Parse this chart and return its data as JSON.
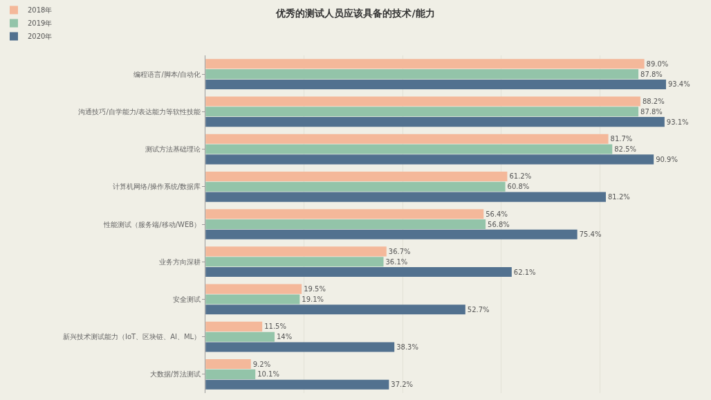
{
  "chart_data": {
    "type": "bar",
    "orientation": "horizontal",
    "title": "优秀的测试人员应该具备的技术/能力",
    "categories": [
      "编程语言/脚本/自动化",
      "沟通技巧/自学能力/表达能力等软性技能",
      "测试方法基础理论",
      "计算机网络/操作系统/数据库",
      "性能测试（服务端/移动/WEB）",
      "业务方向深耕",
      "安全测试",
      "新兴技术测试能力（IoT、区块链、AI、ML）",
      "大数据/算法测试"
    ],
    "series": [
      {
        "name": "2018年",
        "color": "#f4b89a",
        "values": [
          89.0,
          88.2,
          81.7,
          61.2,
          56.4,
          36.7,
          19.5,
          11.5,
          9.2
        ],
        "value_labels": [
          "89.0%",
          "88.2%",
          "81.7%",
          "61.2%",
          "56.4%",
          "36.7%",
          "19.5%",
          "11.5%",
          "9.2%"
        ]
      },
      {
        "name": "2019年",
        "color": "#93c4a9",
        "values": [
          87.8,
          87.8,
          82.5,
          60.8,
          56.8,
          36.1,
          19.1,
          14,
          10.1
        ],
        "value_labels": [
          "87.8%",
          "87.8%",
          "82.5%",
          "60.8%",
          "56.8%",
          "36.1%",
          "19.1%",
          "14%",
          "10.1%"
        ]
      },
      {
        "name": "2020年",
        "color": "#52718f",
        "values": [
          93.4,
          93.1,
          90.9,
          81.2,
          75.4,
          62.1,
          52.7,
          38.3,
          37.2
        ],
        "value_labels": [
          "93.4%",
          "93.1%",
          "90.9%",
          "81.2%",
          "75.4%",
          "62.1%",
          "52.7%",
          "38.3%",
          "37.2%"
        ]
      }
    ],
    "tick_labels": "y",
    "grid": "x",
    "legend": "top left"
  }
}
